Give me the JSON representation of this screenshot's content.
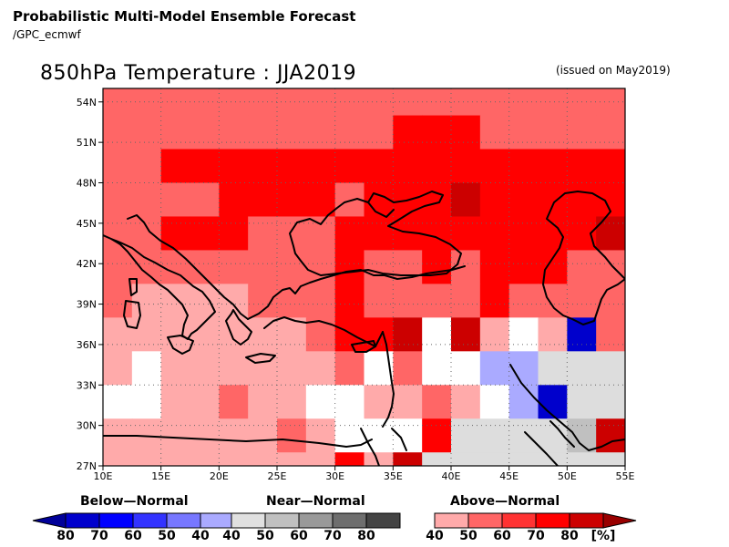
{
  "header": {
    "title": "Probabilistic Multi-Model Ensemble Forecast",
    "subtitle": "/GPC_ecmwf"
  },
  "map": {
    "title": "850hPa Temperature : JJA2019",
    "issued": "(issued on May2019)",
    "lat_labels": [
      "27N",
      "30N",
      "33N",
      "36N",
      "39N",
      "42N",
      "45N",
      "48N",
      "51N",
      "54N"
    ],
    "lon_labels": [
      "10E",
      "15E",
      "20E",
      "25E",
      "30E",
      "35E",
      "40E",
      "45E",
      "50E",
      "55E"
    ],
    "lat_range": [
      27,
      55
    ],
    "lon_range": [
      10,
      55
    ],
    "gridlines": true
  },
  "legend": {
    "below": {
      "title": "Below—Normal",
      "labels": [
        "80",
        "70",
        "60",
        "50",
        "40"
      ],
      "colors": [
        "#0000cc",
        "#0000ff",
        "#3333ff",
        "#7777ff",
        "#aaaaff"
      ],
      "arrow_color": "#000099"
    },
    "near": {
      "title": "Near—Normal",
      "labels": [
        "40",
        "50",
        "60",
        "70",
        "80"
      ],
      "colors": [
        "#e0e0e0",
        "#c0c0c0",
        "#999999",
        "#6e6e6e",
        "#444444"
      ]
    },
    "above": {
      "title": "Above—Normal",
      "labels": [
        "40",
        "50",
        "60",
        "70",
        "80"
      ],
      "colors": [
        "#ffaaaa",
        "#ff6666",
        "#ff3333",
        "#ff0000",
        "#cc0000"
      ],
      "arrow_color": "#990000"
    },
    "unit": "[%]"
  },
  "category_colors": {
    "W": "#ffffff",
    "P": "#ffaaaa",
    "S": "#ff6666",
    "R": "#ff0000",
    "D": "#cc0000",
    "G": "#dddddd",
    "H": "#c0c0c0",
    "L": "#aaaaff",
    "B": "#0000cc",
    "M": "#3333ff"
  },
  "grid_cells": {
    "lon_start": 7.5,
    "lon_step": 2.5,
    "lat_start": 55.5,
    "lat_step": -2.5,
    "rows": [
      "SSSSSSSSSSSSSSSSSSSSSSSSS",
      "SSSSSSSSSSSRRRSSSSSSSSSSR",
      "SSSRRRRRRRRRRRRRRRRRRSSSR",
      "SSSSSRRRRSRRRDRRRRRRRRRSR",
      "RSSRRRSSSRRRRRRRRRDRRSSSS",
      "SSSSSSSSSRSSRSRRRSSSSPPSP",
      "SSPPPPSSSRSSSSRSSSSPPSSSS",
      "PPPPPPPPSRRDWDPWPBSLPWW",
      "WPWPPPPPPSWSWWLLGGGSWPPPP",
      "WWWPPSPPWWPPSPWLBGGGBMPP",
      "WPPPPPPSPWWWRGGGGHDPPPP",
      "PPPPPPPPPRPDGGGGGGGLWWW",
      "SSSSSSSSSSSSGGGGPGGDDDD"
    ]
  }
}
